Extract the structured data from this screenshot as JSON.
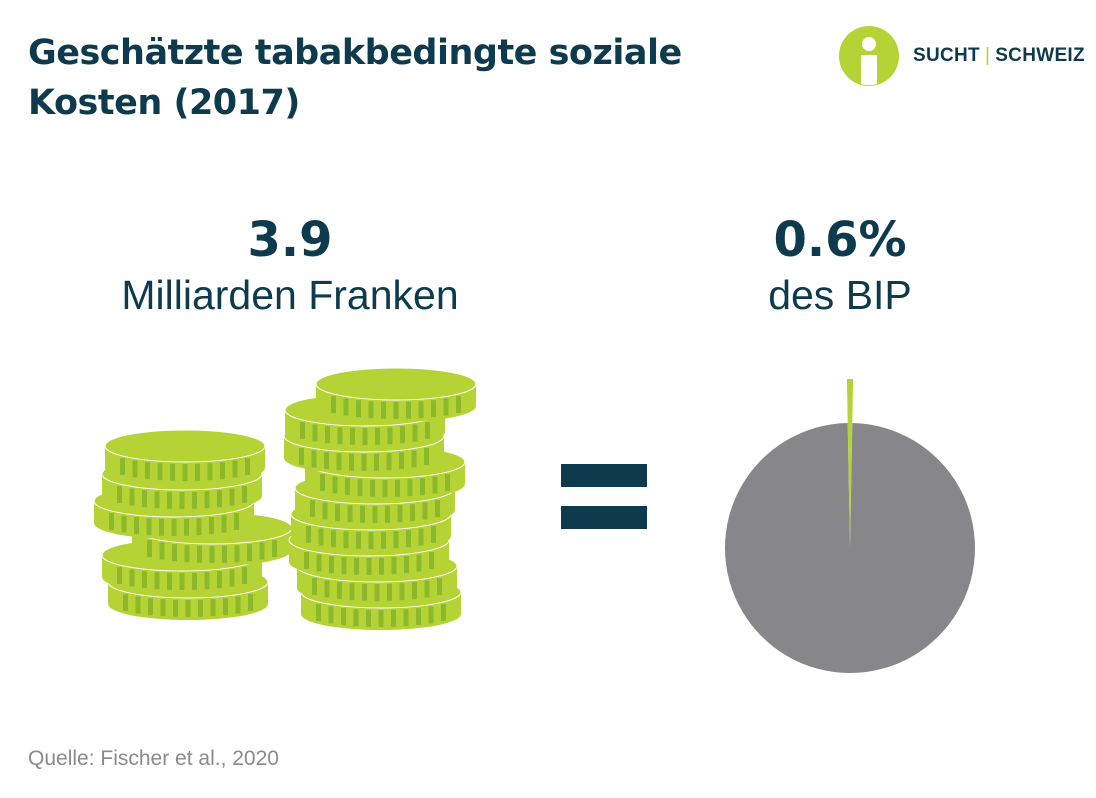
{
  "title": "Geschätzte tabakbedingte soziale Kosten (2017)",
  "logo": {
    "part1": "SUCHT",
    "part2": "SCHWEIZ"
  },
  "left_stat": {
    "value": "3.9",
    "label": "Milliarden Franken"
  },
  "right_stat": {
    "value": "0.6%",
    "label": "des BIP"
  },
  "source": "Quelle: Fischer et al., 2020",
  "colors": {
    "dark_blue": "#0d3a4d",
    "green": "#b5d334",
    "green_dark": "#8cb82c",
    "grey": "#86868b"
  },
  "icons": {
    "coins": "coin-stacks-icon",
    "equals": "equals-icon",
    "logo": "person-in-circle-icon"
  },
  "chart_data": {
    "type": "pie",
    "slices": [
      {
        "value": 0.6
      },
      {
        "value": 99.4
      }
    ],
    "highlighted_slice": 0
  }
}
